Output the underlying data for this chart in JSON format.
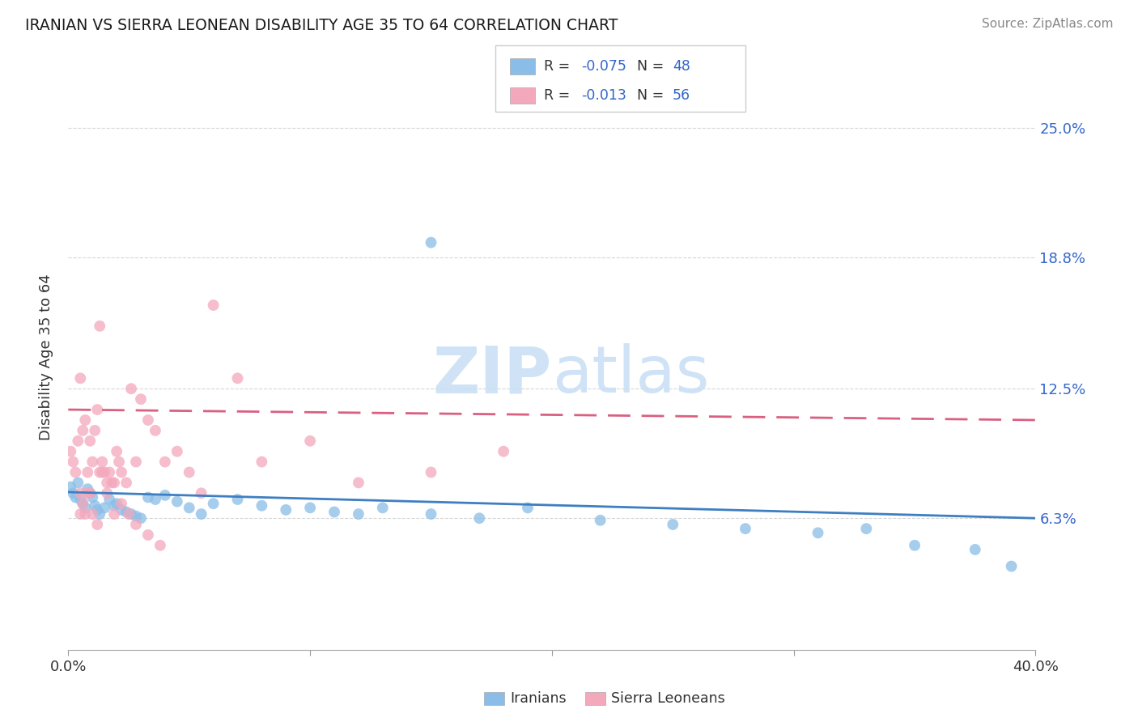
{
  "title": "IRANIAN VS SIERRA LEONEAN DISABILITY AGE 35 TO 64 CORRELATION CHART",
  "source": "Source: ZipAtlas.com",
  "ylabel": "Disability Age 35 to 64",
  "xlim": [
    0.0,
    0.4
  ],
  "ylim": [
    0.0,
    0.28
  ],
  "xticks": [
    0.0,
    0.1,
    0.2,
    0.3,
    0.4
  ],
  "xtick_labels": [
    "0.0%",
    "",
    "",
    "",
    "40.0%"
  ],
  "ytick_vals": [
    0.063,
    0.125,
    0.188,
    0.25
  ],
  "ytick_labels": [
    "6.3%",
    "12.5%",
    "18.8%",
    "25.0%"
  ],
  "iranians_color": "#8abde8",
  "sierra_color": "#f4a8bc",
  "trend_iranian_color": "#3d7fc1",
  "trend_sierra_color": "#d96080",
  "legend_text_color": "#3366cc",
  "watermark_color": "#c8dff5",
  "iranians_x": [
    0.001,
    0.002,
    0.003,
    0.004,
    0.005,
    0.006,
    0.007,
    0.008,
    0.009,
    0.01,
    0.011,
    0.012,
    0.013,
    0.015,
    0.017,
    0.019,
    0.02,
    0.022,
    0.024,
    0.026,
    0.028,
    0.03,
    0.033,
    0.036,
    0.04,
    0.045,
    0.05,
    0.055,
    0.06,
    0.07,
    0.08,
    0.09,
    0.1,
    0.11,
    0.12,
    0.13,
    0.15,
    0.17,
    0.19,
    0.22,
    0.25,
    0.28,
    0.31,
    0.33,
    0.35,
    0.375,
    0.39,
    0.15
  ],
  "iranians_y": [
    0.078,
    0.075,
    0.073,
    0.08,
    0.072,
    0.07,
    0.068,
    0.077,
    0.075,
    0.073,
    0.069,
    0.067,
    0.065,
    0.068,
    0.072,
    0.069,
    0.07,
    0.067,
    0.066,
    0.065,
    0.064,
    0.063,
    0.073,
    0.072,
    0.074,
    0.071,
    0.068,
    0.065,
    0.07,
    0.072,
    0.069,
    0.067,
    0.068,
    0.066,
    0.065,
    0.068,
    0.065,
    0.063,
    0.068,
    0.062,
    0.06,
    0.058,
    0.056,
    0.058,
    0.05,
    0.048,
    0.04,
    0.195
  ],
  "sierra_x": [
    0.001,
    0.002,
    0.003,
    0.004,
    0.005,
    0.005,
    0.006,
    0.007,
    0.008,
    0.009,
    0.01,
    0.011,
    0.012,
    0.013,
    0.014,
    0.015,
    0.016,
    0.017,
    0.018,
    0.019,
    0.02,
    0.021,
    0.022,
    0.024,
    0.026,
    0.028,
    0.03,
    0.033,
    0.036,
    0.04,
    0.045,
    0.05,
    0.055,
    0.06,
    0.07,
    0.08,
    0.1,
    0.12,
    0.15,
    0.18,
    0.013,
    0.009,
    0.007,
    0.005,
    0.006,
    0.008,
    0.01,
    0.012,
    0.014,
    0.016,
    0.019,
    0.022,
    0.025,
    0.028,
    0.033,
    0.038
  ],
  "sierra_y": [
    0.095,
    0.09,
    0.085,
    0.1,
    0.13,
    0.075,
    0.105,
    0.11,
    0.085,
    0.1,
    0.09,
    0.105,
    0.115,
    0.085,
    0.09,
    0.085,
    0.08,
    0.085,
    0.08,
    0.08,
    0.095,
    0.09,
    0.085,
    0.08,
    0.125,
    0.09,
    0.12,
    0.11,
    0.105,
    0.09,
    0.095,
    0.085,
    0.075,
    0.165,
    0.13,
    0.09,
    0.1,
    0.08,
    0.085,
    0.095,
    0.155,
    0.075,
    0.065,
    0.065,
    0.07,
    0.075,
    0.065,
    0.06,
    0.085,
    0.075,
    0.065,
    0.07,
    0.065,
    0.06,
    0.055,
    0.05
  ]
}
